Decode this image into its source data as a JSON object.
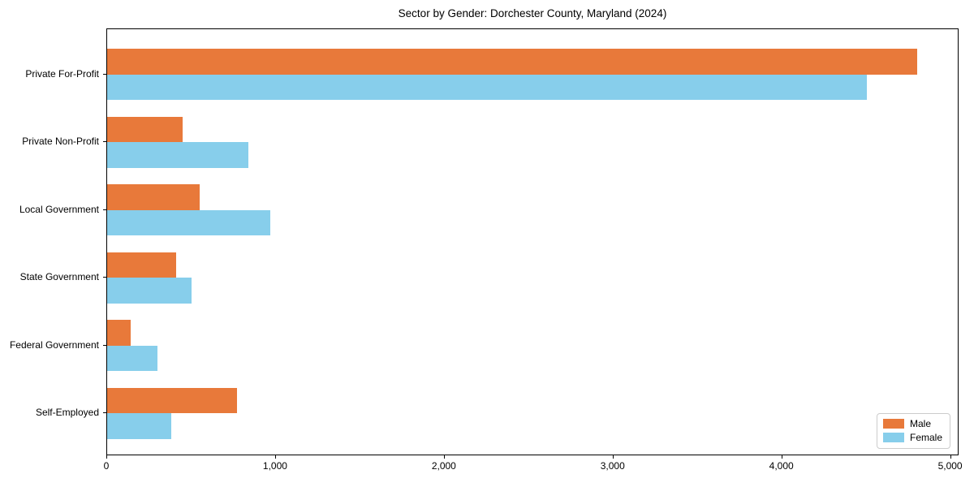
{
  "chart_data": {
    "type": "bar",
    "orientation": "horizontal",
    "title": "Sector by Gender: Dorchester County, Maryland (2024)",
    "categories": [
      "Private For-Profit",
      "Private Non-Profit",
      "Local Government",
      "State Government",
      "Federal Government",
      "Self-Employed"
    ],
    "series": [
      {
        "name": "Male",
        "color": "#e8793a",
        "values": [
          4810,
          450,
          550,
          410,
          140,
          770
        ]
      },
      {
        "name": "Female",
        "color": "#87ceeb",
        "values": [
          4510,
          840,
          970,
          500,
          300,
          380
        ]
      }
    ],
    "xlabel": "",
    "ylabel": "",
    "xlim": [
      0,
      5050
    ],
    "xticks": [
      0,
      1000,
      2000,
      3000,
      4000,
      5000
    ],
    "xtick_labels": [
      "0",
      "1,000",
      "2,000",
      "3,000",
      "4,000",
      "5,000"
    ],
    "grid": false,
    "legend": {
      "position": "lower right",
      "entries": [
        "Male",
        "Female"
      ]
    }
  }
}
